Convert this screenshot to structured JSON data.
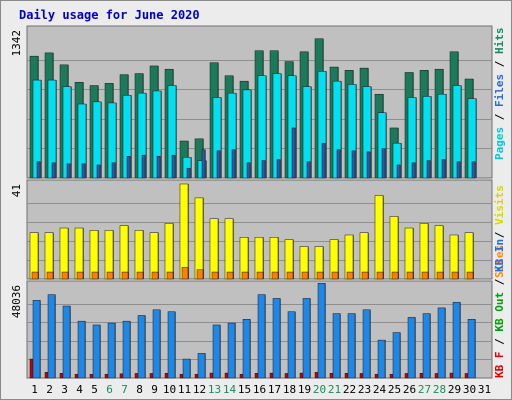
{
  "chart_data": {
    "type": "bar",
    "title": "Daily usage for June 2020",
    "days": [
      "1",
      "2",
      "3",
      "4",
      "5",
      "6",
      "7",
      "8",
      "9",
      "10",
      "11",
      "12",
      "13",
      "14",
      "15",
      "16",
      "17",
      "18",
      "19",
      "20",
      "21",
      "22",
      "23",
      "24",
      "25",
      "26",
      "27",
      "28",
      "29",
      "30",
      "31"
    ],
    "weekend_days": [
      "6",
      "7",
      "13",
      "14",
      "20",
      "21",
      "27",
      "28"
    ],
    "panels": [
      {
        "name": "pages-files-hits",
        "axis_label": "1342",
        "ymax": 1342,
        "series": [
          {
            "name": "Hits",
            "color": "#1a7a5a",
            "values": [
              1120,
              1150,
              1040,
              880,
              850,
              870,
              950,
              960,
              1030,
              1000,
              340,
              360,
              1060,
              940,
              890,
              1170,
              1170,
              1070,
              1160,
              1280,
              1020,
              990,
              1010,
              770,
              460,
              970,
              990,
              1000,
              1160,
              910,
              0
            ]
          },
          {
            "name": "Files",
            "color": "#00e0f0",
            "values": [
              900,
              900,
              840,
              680,
              700,
              690,
              760,
              780,
              800,
              850,
              190,
              160,
              740,
              780,
              810,
              940,
              960,
              940,
              840,
              980,
              890,
              860,
              840,
              600,
              320,
              740,
              750,
              770,
              850,
              730,
              0
            ]
          },
          {
            "name": "Pages",
            "color": "#2a5ab0",
            "values": [
              150,
              140,
              130,
              130,
              120,
              140,
              200,
              210,
              200,
              210,
              90,
              260,
              250,
              260,
              140,
              160,
              170,
              460,
              150,
              320,
              260,
              250,
              240,
              270,
              120,
              140,
              160,
              170,
              150,
              150,
              0
            ]
          }
        ],
        "legend": [
          {
            "text": "Pages",
            "color": "#00c8d8"
          },
          {
            "text": "Files",
            "color": "#2a6ad8"
          },
          {
            "text": "Hits",
            "color": "#1a8a60"
          }
        ]
      },
      {
        "name": "visits-sites",
        "axis_label": "41",
        "ymax": 41,
        "series": [
          {
            "name": "Visits",
            "color": "#ffff00",
            "values": [
              20,
              20,
              22,
              22,
              21,
              21,
              23,
              21,
              20,
              24,
              41,
              35,
              26,
              26,
              18,
              18,
              18,
              17,
              14,
              14,
              17,
              19,
              20,
              36,
              27,
              22,
              24,
              23,
              19,
              20,
              0
            ]
          },
          {
            "name": "Sites",
            "color": "#ff8000",
            "values": [
              3,
              3,
              3,
              3,
              3,
              3,
              3,
              3,
              3,
              3,
              5,
              4,
              3,
              3,
              3,
              3,
              3,
              3,
              3,
              3,
              3,
              3,
              3,
              3,
              3,
              3,
              3,
              3,
              3,
              3,
              0
            ]
          }
        ],
        "legend": [
          {
            "text": "Sites",
            "color": "#ff8c00"
          },
          {
            "text": "Visits",
            "color": "#d8d800"
          }
        ]
      },
      {
        "name": "kb",
        "axis_label": "48036",
        "ymax": 48036,
        "series": [
          {
            "name": "KB In",
            "color": "#1e88e8",
            "values": [
              41000,
              44000,
              38000,
              30000,
              28000,
              29000,
              30000,
              33000,
              36000,
              35000,
              10000,
              13000,
              28000,
              29000,
              31000,
              44000,
              42000,
              35000,
              42000,
              50000,
              34000,
              34000,
              36000,
              20000,
              24000,
              32000,
              34000,
              37000,
              40000,
              31000,
              0
            ]
          },
          {
            "name": "KB Out",
            "color": "#009000",
            "values": [
              0,
              0,
              0,
              0,
              0,
              0,
              0,
              0,
              0,
              0,
              0,
              0,
              0,
              0,
              0,
              0,
              0,
              0,
              0,
              0,
              0,
              0,
              0,
              0,
              0,
              0,
              0,
              0,
              0,
              0,
              0
            ]
          },
          {
            "name": "KB F",
            "color": "#c80000",
            "values": [
              10000,
              3000,
              2500,
              2000,
              2000,
              2000,
              2200,
              2400,
              2400,
              2500,
              2000,
              2000,
              2600,
              2600,
              2000,
              2500,
              2600,
              2400,
              2600,
              3000,
              2500,
              2500,
              2400,
              2000,
              2000,
              2400,
              2500,
              2400,
              2600,
              2400,
              0
            ]
          }
        ],
        "legend": [
          {
            "text": "KB F",
            "color": "#e00000"
          },
          {
            "text": "KB Out",
            "color": "#00a000"
          },
          {
            "text": "KB In",
            "color": "#2a6ad8"
          }
        ]
      }
    ]
  }
}
